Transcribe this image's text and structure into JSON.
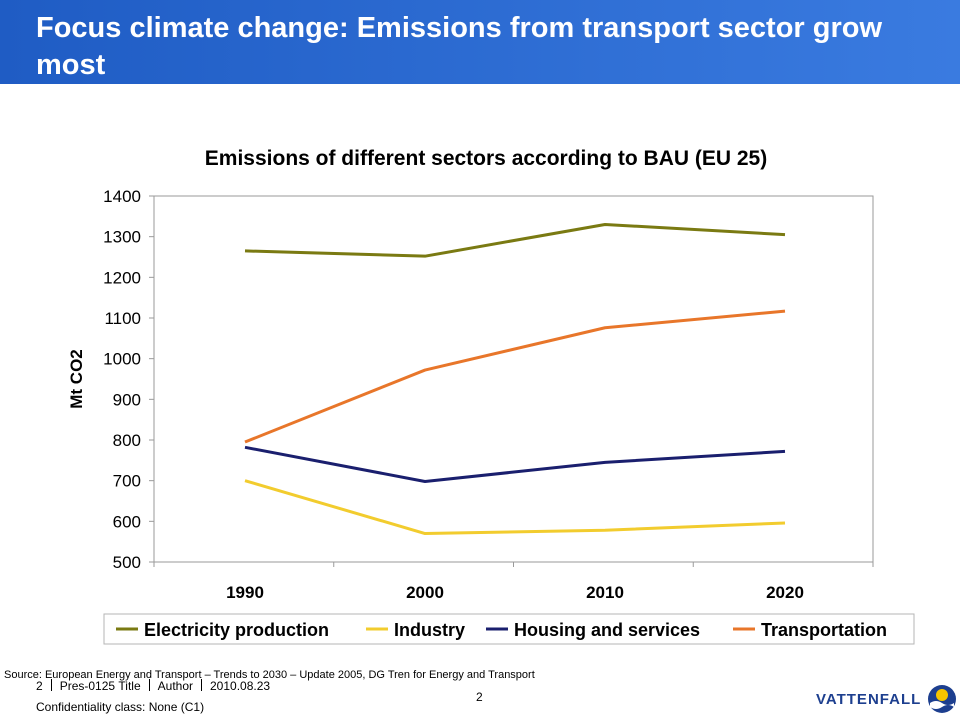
{
  "header": {
    "title": "Focus climate change: Emissions from transport sector grow most"
  },
  "chart_data": {
    "type": "line",
    "title": "Emissions of different sectors according to BAU (EU 25)",
    "xlabel": "",
    "ylabel": "Mt CO2",
    "categories": [
      "1990",
      "2000",
      "2010",
      "2020"
    ],
    "yticks": [
      "500",
      "600",
      "700",
      "800",
      "900",
      "1000",
      "1100",
      "1200",
      "1300",
      "1400"
    ],
    "ylim": [
      500,
      1400
    ],
    "grid": false,
    "legend_position": "bottom",
    "series": [
      {
        "name": "Electricity production",
        "color": "#7a7a12",
        "values": [
          1265,
          1252,
          1330,
          1305
        ]
      },
      {
        "name": "Industry",
        "color": "#f2cc2e",
        "values": [
          700,
          570,
          578,
          596
        ]
      },
      {
        "name": "Housing and services",
        "color": "#1a1f6e",
        "values": [
          782,
          698,
          745,
          772
        ]
      },
      {
        "name": "Transportation",
        "color": "#e8762a",
        "values": [
          795,
          972,
          1076,
          1117
        ]
      }
    ]
  },
  "footer": {
    "source": "Source: European Energy and Transport – Trends to 2030 – Update 2005, DG Tren for Energy and Transport",
    "slide_number": "2",
    "doc_id": "Pres-0125",
    "presentation_title": "Title",
    "author": "Author",
    "date": "2010.08.23",
    "confidentiality": "Confidentiality class: None (C1)",
    "page_number": "2",
    "logo_text": "VATTENFALL"
  }
}
